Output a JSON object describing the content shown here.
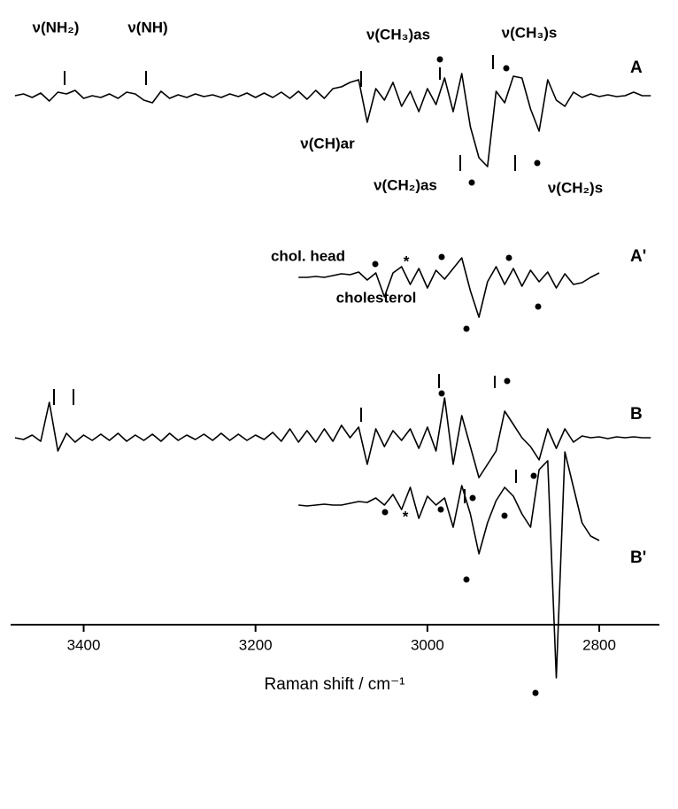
{
  "chart_data": {
    "type": "line",
    "xlabel": "Raman shift / cm⁻¹",
    "xlim": [
      3485,
      2730
    ],
    "xticks": [
      3400,
      3200,
      3000,
      2800
    ],
    "annotations": [
      "ν(NH₂)",
      "ν(NH)",
      "ν(CH₃)as",
      "ν(CH₃)s",
      "ν(CH)ar",
      "ν(CH₂)as",
      "ν(CH₂)s",
      "chol. head",
      "cholesterol",
      "*",
      "*"
    ],
    "series": [
      {
        "name": "A",
        "color": "#000000",
        "x": [
          3480,
          3470,
          3460,
          3450,
          3440,
          3430,
          3420,
          3410,
          3400,
          3390,
          3380,
          3370,
          3360,
          3350,
          3340,
          3330,
          3320,
          3310,
          3300,
          3290,
          3280,
          3270,
          3260,
          3250,
          3240,
          3230,
          3220,
          3210,
          3200,
          3190,
          3180,
          3170,
          3160,
          3150,
          3140,
          3130,
          3120,
          3110,
          3100,
          3090,
          3080,
          3070,
          3060,
          3050,
          3040,
          3030,
          3020,
          3010,
          3000,
          2990,
          2980,
          2970,
          2960,
          2950,
          2940,
          2930,
          2920,
          2910,
          2900,
          2890,
          2880,
          2870,
          2860,
          2850,
          2840,
          2830,
          2820,
          2810,
          2800,
          2790,
          2780,
          2770,
          2760,
          2750,
          2740
        ],
        "values": [
          0,
          2,
          -2,
          3,
          -6,
          4,
          2,
          6,
          -3,
          0,
          -2,
          2,
          -3,
          4,
          2,
          -5,
          -8,
          5,
          -3,
          1,
          -2,
          2,
          -1,
          1,
          -2,
          2,
          -1,
          3,
          -2,
          3,
          -2,
          4,
          -3,
          5,
          -4,
          6,
          -3,
          8,
          10,
          15,
          18,
          -30,
          8,
          -5,
          15,
          -12,
          5,
          -18,
          8,
          -10,
          20,
          -18,
          25,
          -35,
          -70,
          -80,
          5,
          -8,
          22,
          20,
          -15,
          -40,
          18,
          -5,
          -12,
          4,
          -2,
          2,
          -1,
          1,
          -1,
          0,
          4,
          0,
          0
        ]
      },
      {
        "name": "A'",
        "color": "#000000",
        "x": [
          3150,
          3140,
          3130,
          3120,
          3110,
          3100,
          3090,
          3080,
          3070,
          3060,
          3050,
          3040,
          3030,
          3020,
          3010,
          3000,
          2990,
          2980,
          2970,
          2960,
          2950,
          2940,
          2930,
          2920,
          2910,
          2900,
          2890,
          2880,
          2870,
          2860,
          2850,
          2840,
          2830,
          2820,
          2810,
          2800
        ],
        "values": [
          0,
          0,
          1,
          0,
          2,
          4,
          3,
          6,
          -3,
          5,
          -22,
          5,
          12,
          -8,
          10,
          -12,
          8,
          -2,
          10,
          22,
          -15,
          -45,
          -5,
          12,
          -8,
          10,
          -10,
          8,
          -5,
          6,
          -12,
          4,
          -8,
          -6,
          0,
          5
        ]
      },
      {
        "name": "B",
        "color": "#000000",
        "x": [
          3480,
          3470,
          3460,
          3450,
          3440,
          3430,
          3420,
          3410,
          3400,
          3390,
          3380,
          3370,
          3360,
          3350,
          3340,
          3330,
          3320,
          3310,
          3300,
          3290,
          3280,
          3270,
          3260,
          3250,
          3240,
          3230,
          3220,
          3210,
          3200,
          3190,
          3180,
          3170,
          3160,
          3150,
          3140,
          3130,
          3120,
          3110,
          3100,
          3090,
          3080,
          3070,
          3060,
          3050,
          3040,
          3030,
          3020,
          3010,
          3000,
          2990,
          2980,
          2970,
          2960,
          2950,
          2940,
          2930,
          2920,
          2910,
          2900,
          2890,
          2880,
          2870,
          2860,
          2850,
          2840,
          2830,
          2820,
          2810,
          2800,
          2790,
          2780,
          2770,
          2760,
          2750,
          2740
        ],
        "values": [
          0,
          -2,
          3,
          -4,
          40,
          -15,
          5,
          -5,
          3,
          -3,
          4,
          -3,
          5,
          -4,
          3,
          -3,
          4,
          -4,
          5,
          -3,
          3,
          -2,
          4,
          -3,
          5,
          -3,
          4,
          -3,
          3,
          -2,
          6,
          -4,
          10,
          -5,
          8,
          -5,
          10,
          -4,
          14,
          0,
          12,
          -30,
          10,
          -10,
          8,
          -3,
          10,
          -12,
          12,
          -15,
          45,
          -30,
          25,
          -10,
          -45,
          -30,
          -15,
          30,
          15,
          0,
          -10,
          -25,
          10,
          -12,
          10,
          -5,
          2,
          0,
          1,
          -1,
          1,
          0,
          1,
          0,
          0
        ]
      },
      {
        "name": "B'",
        "color": "#000000",
        "x": [
          3150,
          3140,
          3130,
          3120,
          3110,
          3100,
          3090,
          3080,
          3070,
          3060,
          3050,
          3040,
          3030,
          3020,
          3010,
          3000,
          2990,
          2980,
          2970,
          2960,
          2950,
          2940,
          2930,
          2920,
          2910,
          2900,
          2890,
          2880,
          2870,
          2860,
          2850,
          2840,
          2830,
          2820,
          2810,
          2800
        ],
        "values": [
          0,
          -1,
          0,
          1,
          0,
          0,
          2,
          4,
          3,
          8,
          0,
          12,
          -5,
          20,
          -15,
          10,
          0,
          8,
          -25,
          22,
          -10,
          -55,
          -20,
          5,
          20,
          10,
          -10,
          -25,
          40,
          50,
          -195,
          60,
          20,
          -20,
          -35,
          -40
        ]
      }
    ]
  }
}
